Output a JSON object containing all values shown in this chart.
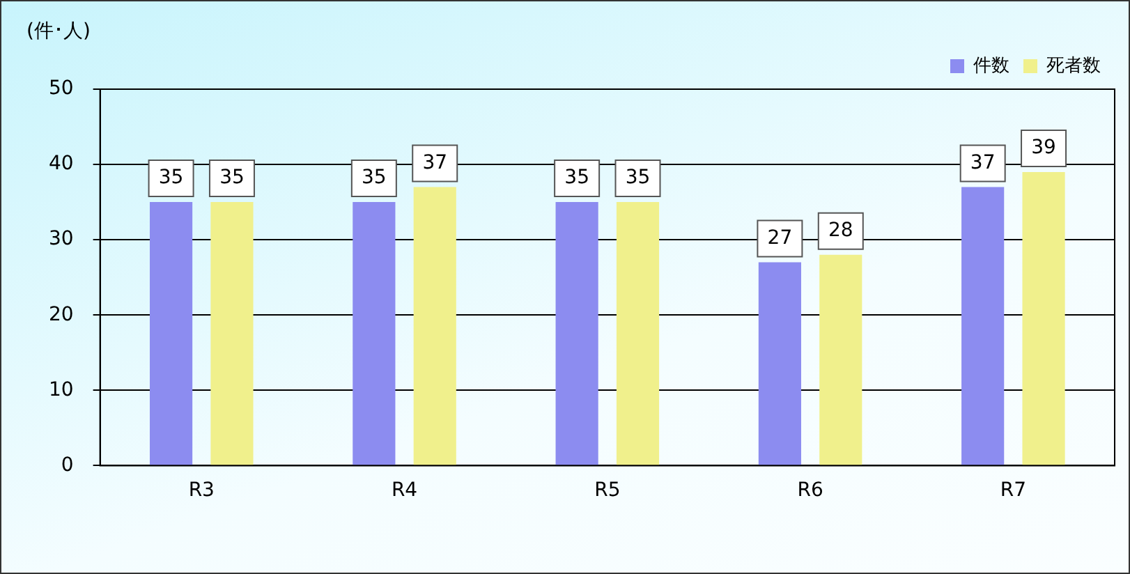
{
  "chart_data": {
    "type": "bar",
    "ylabel": "(件･人)",
    "categories": [
      "R3",
      "R4",
      "R5",
      "R6",
      "R7"
    ],
    "series": [
      {
        "name": "件数",
        "color": "#8c8cf0",
        "values": [
          35,
          35,
          35,
          27,
          37
        ]
      },
      {
        "name": "死者数",
        "color": "#f0f08c",
        "values": [
          35,
          37,
          35,
          28,
          39
        ]
      }
    ],
    "ylim": [
      0,
      50
    ],
    "yticks": [
      0,
      10,
      20,
      30,
      40,
      50
    ],
    "grid": "y",
    "legend": "top right",
    "data_labels": true
  }
}
